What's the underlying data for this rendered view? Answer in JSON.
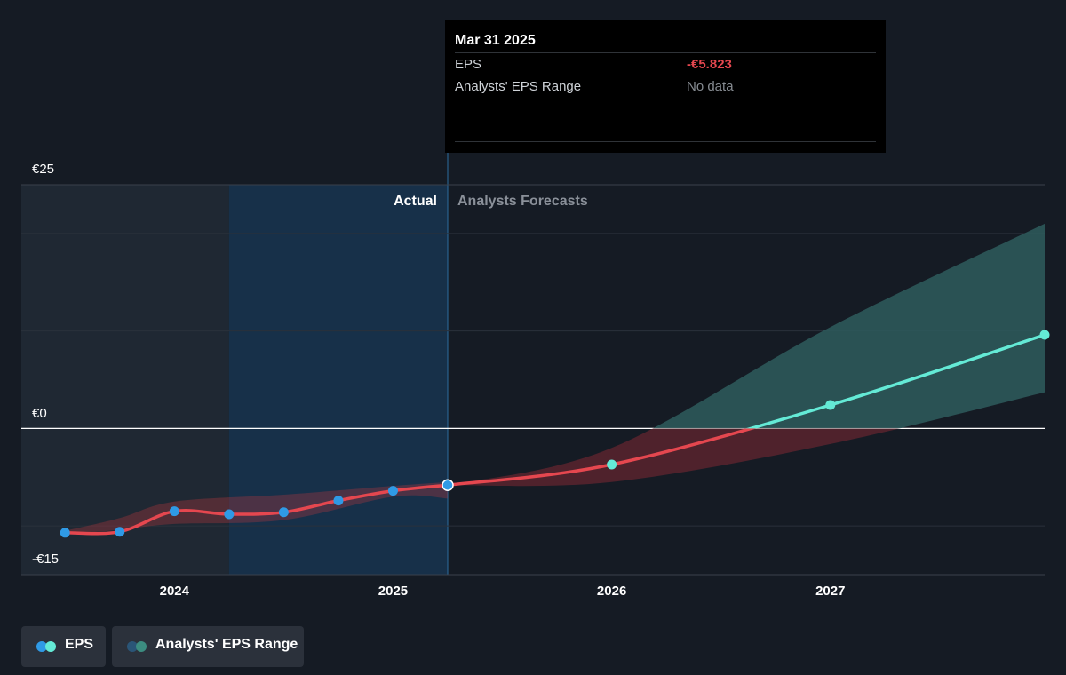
{
  "tooltip": {
    "date": "Mar 31 2025",
    "rows": [
      {
        "label": "EPS",
        "value": "-€5.823",
        "color": "#e5474f"
      },
      {
        "label": "Analysts' EPS Range",
        "value": "No data",
        "color": "#868b91"
      }
    ]
  },
  "regions": {
    "actual": "Actual",
    "forecast": "Analysts Forecasts"
  },
  "legend": [
    {
      "label": "EPS",
      "colors": [
        "#2f9ae6",
        "#64ead6"
      ]
    },
    {
      "label": "Analysts' EPS Range",
      "colors": [
        "#2a5577",
        "#3c8c80"
      ]
    }
  ],
  "colors": {
    "background": "#151b24",
    "actual_line": "#e5474f",
    "forecast_line": "#64ead6",
    "actual_dot": "#2f9ae6",
    "past_band": "#1f2833",
    "actual_highlight": "#173049",
    "forecast_range": "#2e5c5d"
  },
  "chart_data": {
    "type": "line",
    "yaxis": {
      "ticks": [
        {
          "value": 25,
          "label": "€25"
        },
        {
          "value": 0,
          "label": "€0"
        },
        {
          "value": -15,
          "label": "-€15"
        }
      ],
      "ylim": [
        -15,
        25
      ]
    },
    "xaxis": {
      "ticks": [
        {
          "value": 2024.0,
          "label": "2024"
        },
        {
          "value": 2025.0,
          "label": "2025"
        },
        {
          "value": 2026.0,
          "label": "2026"
        },
        {
          "value": 2027.0,
          "label": "2027"
        }
      ],
      "xlim": [
        2023.3,
        2027.98
      ]
    },
    "grid": true,
    "legend_position": "bottom-left",
    "divider_x": 2025.25,
    "highlight_range": [
      2024.25,
      2025.25
    ],
    "past_shade_range": [
      2023.3,
      2024.25
    ],
    "series": [
      {
        "name": "EPS",
        "kind": "actual",
        "points": [
          {
            "x": 2023.5,
            "y": -10.7
          },
          {
            "x": 2023.75,
            "y": -10.6
          },
          {
            "x": 2024.0,
            "y": -8.5
          },
          {
            "x": 2024.25,
            "y": -8.8
          },
          {
            "x": 2024.5,
            "y": -8.6
          },
          {
            "x": 2024.75,
            "y": -7.4
          },
          {
            "x": 2025.0,
            "y": -6.4
          },
          {
            "x": 2025.25,
            "y": -5.823
          }
        ]
      },
      {
        "name": "EPS",
        "kind": "forecast",
        "points": [
          {
            "x": 2025.25,
            "y": -5.823
          },
          {
            "x": 2026.0,
            "y": -3.7
          },
          {
            "x": 2027.0,
            "y": 2.4
          },
          {
            "x": 2027.98,
            "y": 9.6
          }
        ]
      }
    ],
    "range": {
      "name": "Analysts' EPS Range",
      "past_band": [
        {
          "x": 2023.5,
          "low": -10.9,
          "high": -10.5
        },
        {
          "x": 2023.75,
          "low": -10.4,
          "high": -9.2
        },
        {
          "x": 2024.0,
          "low": -9.8,
          "high": -7.5
        },
        {
          "x": 2024.5,
          "low": -9.4,
          "high": -6.8
        },
        {
          "x": 2025.0,
          "low": -7.0,
          "high": -5.9
        },
        {
          "x": 2025.25,
          "low": -7.2,
          "high": -5.5
        }
      ],
      "forecast_band": [
        {
          "x": 2025.25,
          "low": -5.823,
          "high": -5.823
        },
        {
          "x": 2026.0,
          "low": -5.5,
          "high": -2.0
        },
        {
          "x": 2027.0,
          "low": -1.6,
          "high": 10.4
        },
        {
          "x": 2027.98,
          "low": 3.7,
          "high": 21.0
        }
      ]
    }
  }
}
